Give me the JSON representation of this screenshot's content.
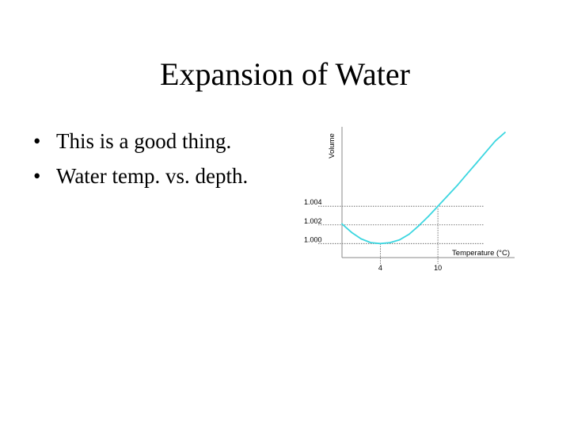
{
  "slide": {
    "title": "Expansion of Water",
    "bullets": [
      "This is a good thing.",
      "Water temp. vs. depth."
    ]
  },
  "chart_data": {
    "type": "line",
    "xlabel": "Temperature (°C)",
    "ylabel": "Volume",
    "x_ticks": [
      {
        "value": 4,
        "label": "4"
      },
      {
        "value": 10,
        "label": "10"
      }
    ],
    "y_ticks": [
      {
        "value": 1.0,
        "label": "1.000"
      },
      {
        "value": 1.002,
        "label": "1.002"
      },
      {
        "value": 1.004,
        "label": "1.004"
      }
    ],
    "xlim": [
      0,
      18
    ],
    "ylim": [
      0.9985,
      1.0125
    ],
    "grid": "dotted reference lines at labeled ticks",
    "series": [
      {
        "color": "#3cd6e0",
        "points": [
          [
            0,
            1.0021
          ],
          [
            1,
            1.0012
          ],
          [
            2,
            1.0005
          ],
          [
            3,
            1.0001
          ],
          [
            4,
            1.0
          ],
          [
            5,
            1.0001
          ],
          [
            6,
            1.0004
          ],
          [
            7,
            1.001
          ],
          [
            8,
            1.0019
          ],
          [
            9,
            1.0029
          ],
          [
            10,
            1.004
          ],
          [
            11,
            1.0051
          ],
          [
            12,
            1.0062
          ],
          [
            13,
            1.0074
          ],
          [
            14,
            1.0086
          ],
          [
            15,
            1.0098
          ],
          [
            16,
            1.011
          ],
          [
            17,
            1.0119
          ]
        ]
      }
    ]
  }
}
